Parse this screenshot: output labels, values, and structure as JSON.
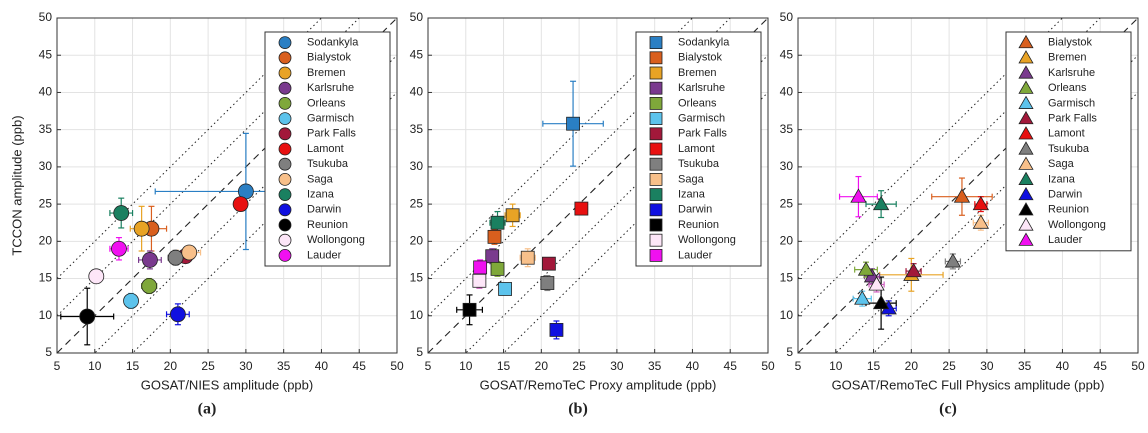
{
  "chart_data": [
    {
      "type": "scatter",
      "panel_label": "(a)",
      "x_label": "GOSAT/NIES amplitude (ppb)",
      "y_label": "TCCON amplitude (ppb)",
      "marker": "circle",
      "grid": true,
      "legend": "upper right",
      "xlim": [
        5,
        50
      ],
      "ylim": [
        5,
        50
      ],
      "xticks": [
        5,
        10,
        15,
        20,
        25,
        30,
        35,
        40,
        45,
        50
      ],
      "yticks": [
        5,
        10,
        15,
        20,
        25,
        30,
        35,
        40,
        45,
        50
      ],
      "series": [
        {
          "name": "Sodankyla",
          "color": "#2a7fc4",
          "x": 30,
          "y": 26.7,
          "xerr": 12,
          "yerr": 7.8
        },
        {
          "name": "Bialystok",
          "color": "#d95f1e",
          "x": 17.5,
          "y": 21.7,
          "xerr": 2,
          "yerr": 3
        },
        {
          "name": "Bremen",
          "color": "#e8a325",
          "x": 16.2,
          "y": 21.7,
          "xerr": 1.5,
          "yerr": 3
        },
        {
          "name": "Karlsruhe",
          "color": "#7a3a8e",
          "x": 17.3,
          "y": 17.5,
          "xerr": 1.5,
          "yerr": 1.2
        },
        {
          "name": "Orleans",
          "color": "#7fa83a",
          "x": 17.2,
          "y": 14,
          "xerr": 1,
          "yerr": 1
        },
        {
          "name": "Garmisch",
          "color": "#5cc3ec",
          "x": 14.8,
          "y": 12,
          "xerr": 0.8,
          "yerr": 1
        },
        {
          "name": "Park Falls",
          "color": "#a2183a",
          "x": 22,
          "y": 18,
          "xerr": 1,
          "yerr": 0.8
        },
        {
          "name": "Lamont",
          "color": "#e81010",
          "x": 29.3,
          "y": 25,
          "xerr": 0.7,
          "yerr": 0.8
        },
        {
          "name": "Tsukuba",
          "color": "#7f7f7f",
          "x": 20.7,
          "y": 17.8,
          "xerr": 1,
          "yerr": 1
        },
        {
          "name": "Saga",
          "color": "#f8c08a",
          "x": 22.5,
          "y": 18.5,
          "xerr": 1.5,
          "yerr": 0.8
        },
        {
          "name": "Izana",
          "color": "#1a8060",
          "x": 13.5,
          "y": 23.8,
          "xerr": 1.5,
          "yerr": 2
        },
        {
          "name": "Darwin",
          "color": "#1010e0",
          "x": 21,
          "y": 10.2,
          "xerr": 1.5,
          "yerr": 1.4
        },
        {
          "name": "Reunion",
          "color": "#000000",
          "x": 9,
          "y": 9.9,
          "xerr": 3.5,
          "yerr": 3.8
        },
        {
          "name": "Wollongong",
          "color": "#fde6f8",
          "x": 10.2,
          "y": 15.3,
          "xerr": 0.5,
          "yerr": 0.5
        },
        {
          "name": "Lauder",
          "color": "#f010f0",
          "x": 13.2,
          "y": 19,
          "xerr": 1.2,
          "yerr": 1.5
        }
      ]
    },
    {
      "type": "scatter",
      "panel_label": "(b)",
      "x_label": "GOSAT/RemoTeC Proxy amplitude (ppb)",
      "marker": "square",
      "grid": true,
      "legend": "upper right",
      "xlim": [
        5,
        50
      ],
      "ylim": [
        5,
        50
      ],
      "xticks": [
        5,
        10,
        15,
        20,
        25,
        30,
        35,
        40,
        45,
        50
      ],
      "yticks": [
        5,
        10,
        15,
        20,
        25,
        30,
        35,
        40,
        45,
        50
      ],
      "series": [
        {
          "name": "Sodankyla",
          "color": "#2a7fc4",
          "x": 24.2,
          "y": 35.8,
          "xerr": 4,
          "yerr": 5.7
        },
        {
          "name": "Bialystok",
          "color": "#d95f1e",
          "x": 13.8,
          "y": 20.6,
          "xerr": 0.8,
          "yerr": 1
        },
        {
          "name": "Bremen",
          "color": "#e8a325",
          "x": 16.2,
          "y": 23.5,
          "xerr": 1,
          "yerr": 1.5
        },
        {
          "name": "Karlsruhe",
          "color": "#7a3a8e",
          "x": 13.5,
          "y": 18,
          "xerr": 0.8,
          "yerr": 1
        },
        {
          "name": "Orleans",
          "color": "#7fa83a",
          "x": 14.2,
          "y": 16.3,
          "xerr": 0.8,
          "yerr": 1
        },
        {
          "name": "Garmisch",
          "color": "#5cc3ec",
          "x": 15.2,
          "y": 13.6,
          "xerr": 0.8,
          "yerr": 0.8
        },
        {
          "name": "Park Falls",
          "color": "#a2183a",
          "x": 21,
          "y": 17,
          "xerr": 0.7,
          "yerr": 0.7
        },
        {
          "name": "Lamont",
          "color": "#e81010",
          "x": 25.3,
          "y": 24.4,
          "xerr": 0.8,
          "yerr": 0.8
        },
        {
          "name": "Tsukuba",
          "color": "#7f7f7f",
          "x": 20.8,
          "y": 14.4,
          "xerr": 0.7,
          "yerr": 1
        },
        {
          "name": "Saga",
          "color": "#f8c08a",
          "x": 18.2,
          "y": 17.8,
          "xerr": 1,
          "yerr": 1.2
        },
        {
          "name": "Izana",
          "color": "#1a8060",
          "x": 14.2,
          "y": 22.5,
          "xerr": 1,
          "yerr": 1.5
        },
        {
          "name": "Darwin",
          "color": "#1010e0",
          "x": 22,
          "y": 8.1,
          "xerr": 0.7,
          "yerr": 1.2
        },
        {
          "name": "Reunion",
          "color": "#000000",
          "x": 10.5,
          "y": 10.8,
          "xerr": 1.7,
          "yerr": 2
        },
        {
          "name": "Wollongong",
          "color": "#fde6f8",
          "x": 11.8,
          "y": 14.7,
          "xerr": 0.8,
          "yerr": 1
        },
        {
          "name": "Lauder",
          "color": "#f010f0",
          "x": 11.9,
          "y": 16.5,
          "xerr": 0.8,
          "yerr": 1
        }
      ]
    },
    {
      "type": "scatter",
      "panel_label": "(c)",
      "x_label": "GOSAT/RemoTeC Full Physics amplitude (ppb)",
      "marker": "triangle",
      "grid": true,
      "legend": "upper right",
      "xlim": [
        5,
        50
      ],
      "ylim": [
        5,
        50
      ],
      "xticks": [
        5,
        10,
        15,
        20,
        25,
        30,
        35,
        40,
        45,
        50
      ],
      "yticks": [
        5,
        10,
        15,
        20,
        25,
        30,
        35,
        40,
        45,
        50
      ],
      "series": [
        {
          "name": "Bialystok",
          "color": "#d95f1e",
          "x": 26.7,
          "y": 26,
          "xerr": 4,
          "yerr": 2.5
        },
        {
          "name": "Bremen",
          "color": "#e8a325",
          "x": 20,
          "y": 15.5,
          "xerr": 4.2,
          "yerr": 2.2
        },
        {
          "name": "Karlsruhe",
          "color": "#7a3a8e",
          "x": 14.8,
          "y": 15.3,
          "xerr": 1,
          "yerr": 1
        },
        {
          "name": "Orleans",
          "color": "#7fa83a",
          "x": 14,
          "y": 16.2,
          "xerr": 1.5,
          "yerr": 1
        },
        {
          "name": "Garmisch",
          "color": "#5cc3ec",
          "x": 13.5,
          "y": 12.3,
          "xerr": 1.2,
          "yerr": 1
        },
        {
          "name": "Park Falls",
          "color": "#a2183a",
          "x": 20.3,
          "y": 16,
          "xerr": 1,
          "yerr": 1
        },
        {
          "name": "Lamont",
          "color": "#e81010",
          "x": 29.2,
          "y": 25,
          "xerr": 0.8,
          "yerr": 1
        },
        {
          "name": "Tsukuba",
          "color": "#7f7f7f",
          "x": 25.5,
          "y": 17.3,
          "xerr": 1,
          "yerr": 1
        },
        {
          "name": "Saga",
          "color": "#f8c08a",
          "x": 29.2,
          "y": 22.5,
          "xerr": 1,
          "yerr": 1
        },
        {
          "name": "Izana",
          "color": "#1a8060",
          "x": 16,
          "y": 25,
          "xerr": 2,
          "yerr": 1.8
        },
        {
          "name": "Darwin",
          "color": "#1010e0",
          "x": 17,
          "y": 11,
          "xerr": 1,
          "yerr": 1
        },
        {
          "name": "Reunion",
          "color": "#000000",
          "x": 16,
          "y": 11.7,
          "xerr": 2,
          "yerr": 3.5
        },
        {
          "name": "Wollongong",
          "color": "#fde6f8",
          "x": 15.4,
          "y": 14.2,
          "xerr": 1,
          "yerr": 1
        },
        {
          "name": "Lauder",
          "color": "#f010f0",
          "x": 13,
          "y": 26,
          "xerr": 2.5,
          "yerr": 2.7
        }
      ]
    }
  ]
}
